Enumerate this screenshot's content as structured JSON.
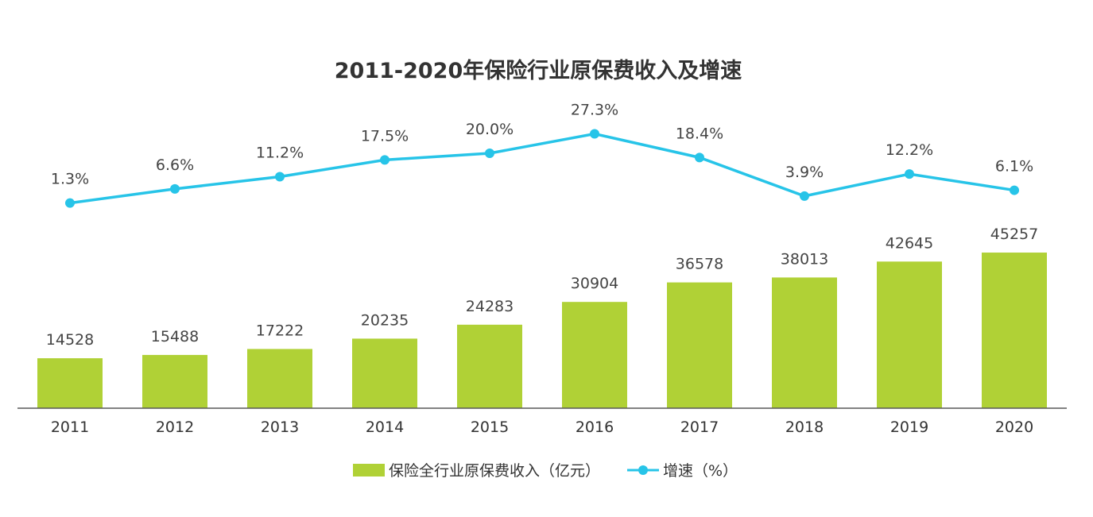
{
  "chart_data": {
    "type": "bar",
    "title": "2011-2020年保险行业原保费收入及增速",
    "categories": [
      "2011",
      "2012",
      "2013",
      "2014",
      "2015",
      "2016",
      "2017",
      "2018",
      "2019",
      "2020"
    ],
    "series": [
      {
        "name": "保险全行业原保费收入（亿元）",
        "type": "bar",
        "values": [
          14528,
          15488,
          17222,
          20235,
          24283,
          30904,
          36578,
          38013,
          42645,
          45257
        ],
        "labels": [
          "14528",
          "15488",
          "17222",
          "20235",
          "24283",
          "30904",
          "36578",
          "38013",
          "42645",
          "45257"
        ]
      },
      {
        "name": "增速（%）",
        "type": "line",
        "values": [
          1.3,
          6.6,
          11.2,
          17.5,
          20.0,
          27.3,
          18.4,
          3.9,
          12.2,
          6.1
        ],
        "labels": [
          "1.3%",
          "6.6%",
          "11.2%",
          "17.5%",
          "20.0%",
          "27.3%",
          "18.4%",
          "3.9%",
          "12.2%",
          "6.1%"
        ]
      }
    ],
    "xlabel": "",
    "ylabel": "",
    "grid": false,
    "legend": "bottom-center"
  },
  "colors": {
    "bar": "#b0d136",
    "line": "#27c4e8",
    "axis": "#595959",
    "title": "#333333",
    "label": "#444444"
  }
}
